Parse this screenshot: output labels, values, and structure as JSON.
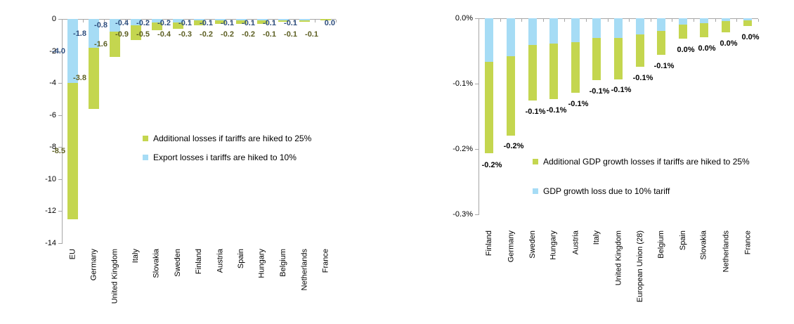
{
  "page": {
    "background": "#FFFFFF"
  },
  "colors": {
    "bar_green": "#C4D64F",
    "bar_blue": "#A6DCF5",
    "label_blue_text": "#2E4E7E",
    "label_green_text": "#5D5F23",
    "axis_line": "#A6A6A6",
    "text": "#000000"
  },
  "chart_data": [
    {
      "id": "export-losses",
      "type": "bar",
      "stacked": true,
      "title": "",
      "xlabel": "",
      "ylabel": "",
      "ylim": [
        0,
        -14
      ],
      "grid": false,
      "legend_position": "inside-right",
      "y_ticks": [
        "0",
        "-2",
        "-4",
        "-6",
        "-8",
        "-10",
        "-12",
        "-14"
      ],
      "categories": [
        "EU",
        "Germany",
        "United Kingdom",
        "Italy",
        "Slovakia",
        "Sweden",
        "Finland",
        "Austria",
        "Spain",
        "Hungary",
        "Belgium",
        "Netherlands",
        "France"
      ],
      "series": [
        {
          "name": "Export losses i tariffs are hiked to 10%",
          "color": "#A6DCF5",
          "label_color": "#2E4E7E",
          "values": [
            -4.0,
            -1.8,
            -0.8,
            -0.4,
            -0.2,
            -0.2,
            -0.1,
            -0.1,
            -0.1,
            -0.1,
            -0.1,
            -0.1,
            0.0
          ],
          "labels": [
            "-4.0",
            "-1.8",
            "-0.8",
            "-0.4",
            "-0.2",
            "-0.2",
            "-0.1",
            "-0.1",
            "-0.1",
            "-0.1",
            "-0.1",
            "-0.1",
            "0.0"
          ]
        },
        {
          "name": "Additional losses if tariffs are hiked to 25%",
          "color": "#C4D64F",
          "label_color": "#5D5F23",
          "values": [
            -8.5,
            -3.8,
            -1.6,
            -0.9,
            -0.5,
            -0.4,
            -0.3,
            -0.2,
            -0.2,
            -0.2,
            -0.1,
            -0.1,
            -0.1
          ],
          "labels": [
            "-8.5",
            "-3.8",
            "-1.6",
            "-0.9",
            "-0.5",
            "-0.4",
            "-0.3",
            "-0.2",
            "-0.2",
            "-0.2",
            "-0.1",
            "-0.1",
            "-0.1"
          ]
        }
      ],
      "legend": [
        {
          "swatch": "#C4D64F",
          "label": "Additional losses if tariffs are hiked to 25%"
        },
        {
          "swatch": "#A6DCF5",
          "label": "Export losses i tariffs are hiked to 10%"
        }
      ]
    },
    {
      "id": "gdp-growth-losses",
      "type": "bar",
      "stacked": true,
      "title": "",
      "xlabel": "",
      "ylabel": "",
      "ylim": [
        0,
        -0.3
      ],
      "grid": false,
      "legend_position": "inside-right",
      "y_ticks": [
        "0.0%",
        "-0.1%",
        "-0.2%",
        "-0.3%"
      ],
      "categories": [
        "Finland",
        "Germany",
        "Sweden",
        "Hungary",
        "Austria",
        "Italy",
        "United Kingdom",
        "European Union (28)",
        "Belgium",
        "Spain",
        "Slovakia",
        "Netherlands",
        "France"
      ],
      "series": [
        {
          "name": "GDP growth loss due to 10% tariff",
          "color": "#A6DCF5",
          "label_color": "#000000",
          "values": [
            -0.067,
            -0.058,
            -0.041,
            -0.039,
            -0.037,
            -0.03,
            -0.03,
            -0.025,
            -0.019,
            -0.01,
            -0.008,
            -0.004,
            -0.003
          ]
        },
        {
          "name": "Additional GDP growth losses if tariffs are hiked to 25%",
          "color": "#C4D64F",
          "label_color": "#000000",
          "values": [
            -0.14,
            -0.121,
            -0.085,
            -0.085,
            -0.077,
            -0.065,
            -0.063,
            -0.049,
            -0.037,
            -0.021,
            -0.021,
            -0.017,
            -0.009
          ]
        }
      ],
      "total_labels": [
        "-0.2%",
        "-0.2%",
        "-0.1%",
        "-0.1%",
        "-0.1%",
        "-0.1%",
        "-0.1%",
        "-0.1%",
        "-0.1%",
        "0.0%",
        "0.0%",
        "0.0%",
        "0.0%"
      ],
      "legend": [
        {
          "swatch": "#C4D64F",
          "label": "Additional GDP growth losses if tariffs are hiked to 25%"
        },
        {
          "swatch": "#A6DCF5",
          "label": "GDP growth loss due to 10% tariff"
        }
      ]
    }
  ]
}
